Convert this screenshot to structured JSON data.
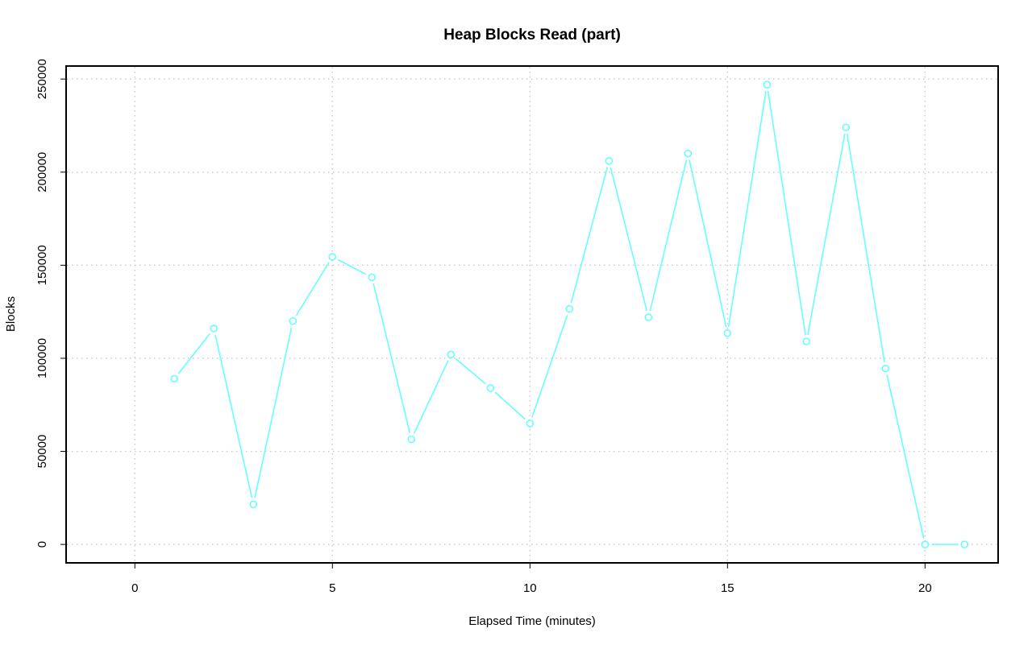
{
  "chart_data": {
    "type": "line",
    "title": "Heap Blocks Read (part)",
    "xlabel": "Elapsed Time (minutes)",
    "ylabel": "Blocks",
    "x": [
      1,
      2,
      3,
      4,
      5,
      6,
      7,
      8,
      9,
      10,
      11,
      12,
      13,
      14,
      15,
      16,
      17,
      18,
      19,
      20,
      21
    ],
    "series": [
      {
        "values": [
          89000,
          116000,
          21500,
          120000,
          154500,
          143500,
          56500,
          102000,
          84000,
          65000,
          126500,
          206000,
          122000,
          210000,
          113500,
          247000,
          109000,
          224000,
          94500,
          0,
          0
        ],
        "color": "#66ffff"
      }
    ],
    "xlim": [
      -1.74,
      21.85
    ],
    "ylim": [
      -9900,
      257000
    ],
    "xticks": [
      0,
      5,
      10,
      15,
      20
    ],
    "xtick_labels": [
      "0",
      "5",
      "10",
      "15",
      "20"
    ],
    "yticks": [
      0,
      50000,
      100000,
      150000,
      200000,
      250000
    ],
    "ytick_labels": [
      "0",
      "50000",
      "100000",
      "150000",
      "200000",
      "250000"
    ],
    "grid": true,
    "legend": "none",
    "marker": "open-circle"
  }
}
